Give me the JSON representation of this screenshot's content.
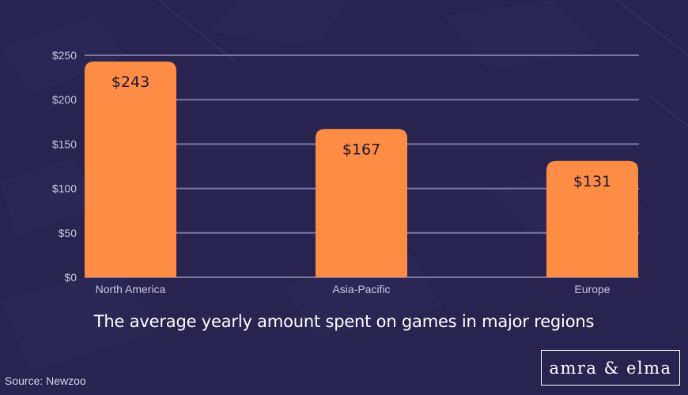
{
  "chart_data": {
    "type": "bar",
    "title": "The average yearly amount spent on games in major regions",
    "categories": [
      "North America",
      "Asia-Pacific",
      "Europe"
    ],
    "values": [
      243,
      167,
      131
    ],
    "value_labels": [
      "$243",
      "$167",
      "$131"
    ],
    "ylim": [
      0,
      250
    ],
    "y_ticks": [
      0,
      50,
      100,
      150,
      200,
      250
    ],
    "y_tick_labels": [
      "$0",
      "$50",
      "$100",
      "$150",
      "$200",
      "$250"
    ],
    "xlabel": "",
    "ylabel": "",
    "grid": true,
    "bar_color": "#ff8c45",
    "grid_color": "#7a77a0"
  },
  "footer": {
    "source": "Source: Newzoo",
    "logo_text": "amra & elma"
  },
  "colors": {
    "background": "#28244f",
    "title_text": "#ffffff"
  }
}
